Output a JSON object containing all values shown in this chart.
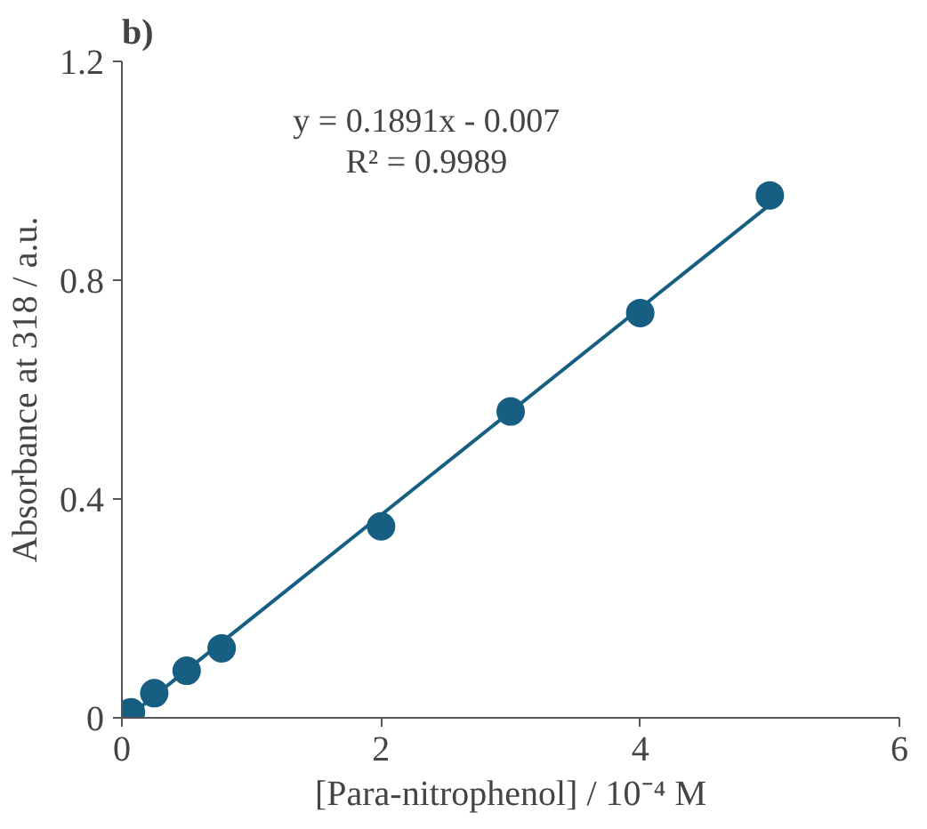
{
  "chart_data": {
    "type": "scatter",
    "title": "b)",
    "xlabel": "[Para-nitrophenol] / 10⁻⁴ M",
    "ylabel": "Absorbance at 318 / a.u.",
    "series": [
      {
        "color": "#175f82",
        "marker": "circle",
        "x": [
          0.07,
          0.25,
          0.5,
          0.77,
          2,
          3,
          4,
          5
        ],
        "values": [
          0.01,
          0.045,
          0.086,
          0.127,
          0.35,
          0.56,
          0.74,
          0.955
        ]
      },
      {
        "type": "line",
        "color": "#175f82",
        "x": [
          0.05,
          5
        ],
        "values": [
          0.002,
          0.938
        ]
      }
    ],
    "xlim": [
      0,
      6
    ],
    "ylim": [
      0,
      1.2
    ],
    "xticks": [
      0,
      2,
      4,
      6
    ],
    "yticks": [
      0,
      0.4,
      0.8,
      1.2
    ],
    "grid": false,
    "annotations": [
      "y = 0.1891x - 0.007",
      "R² = 0.9989"
    ]
  }
}
